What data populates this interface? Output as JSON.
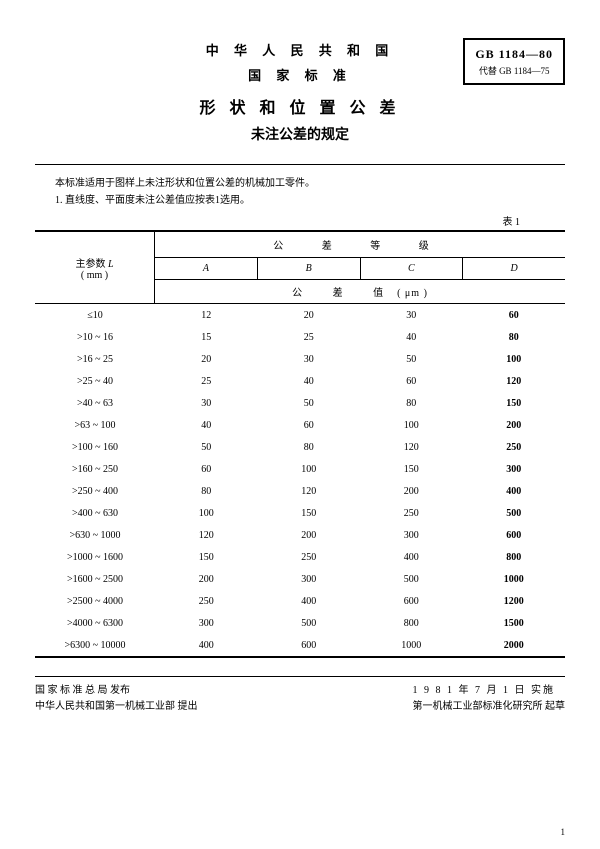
{
  "header": {
    "country": "中 华 人 民 共 和 国",
    "standard": "国 家 标 准",
    "main_title": "形 状 和 位 置 公 差",
    "sub_title": "未注公差的规定",
    "gb_main": "GB 1184—80",
    "gb_sub": "代替 GB 1184—75"
  },
  "intro": {
    "line1": "本标准适用于图样上未注形状和位置公差的机械加工零件。",
    "line2": "1. 直线度、平面度未注公差值应按表1选用。"
  },
  "table": {
    "label": "表 1",
    "param_label_1": "主参数",
    "param_label_L": "L",
    "param_label_2": "( mm )",
    "grade_label": "公 差 等 级",
    "columns": [
      "A",
      "B",
      "C",
      "D"
    ],
    "unit_label": "公 差 值",
    "unit_paren": "( μm )",
    "rows": [
      {
        "range": "≤10",
        "vals": [
          "12",
          "20",
          "30",
          "60"
        ]
      },
      {
        "range": ">10 ~ 16",
        "vals": [
          "15",
          "25",
          "40",
          "80"
        ]
      },
      {
        "range": ">16 ~ 25",
        "vals": [
          "20",
          "30",
          "50",
          "100"
        ]
      },
      {
        "range": ">25 ~ 40",
        "vals": [
          "25",
          "40",
          "60",
          "120"
        ]
      },
      {
        "range": ">40 ~ 63",
        "vals": [
          "30",
          "50",
          "80",
          "150"
        ]
      },
      {
        "range": ">63 ~ 100",
        "vals": [
          "40",
          "60",
          "100",
          "200"
        ]
      },
      {
        "range": ">100 ~ 160",
        "vals": [
          "50",
          "80",
          "120",
          "250"
        ]
      },
      {
        "range": ">160 ~ 250",
        "vals": [
          "60",
          "100",
          "150",
          "300"
        ]
      },
      {
        "range": ">250 ~ 400",
        "vals": [
          "80",
          "120",
          "200",
          "400"
        ]
      },
      {
        "range": ">400 ~ 630",
        "vals": [
          "100",
          "150",
          "250",
          "500"
        ]
      },
      {
        "range": ">630 ~ 1000",
        "vals": [
          "120",
          "200",
          "300",
          "600"
        ]
      },
      {
        "range": ">1000 ~ 1600",
        "vals": [
          "150",
          "250",
          "400",
          "800"
        ]
      },
      {
        "range": ">1600 ~ 2500",
        "vals": [
          "200",
          "300",
          "500",
          "1000"
        ]
      },
      {
        "range": ">2500 ~ 4000",
        "vals": [
          "250",
          "400",
          "600",
          "1200"
        ]
      },
      {
        "range": ">4000 ~ 6300",
        "vals": [
          "300",
          "500",
          "800",
          "1500"
        ]
      },
      {
        "range": ">6300 ~ 10000",
        "vals": [
          "400",
          "600",
          "1000",
          "2000"
        ]
      }
    ],
    "bold_col": 3
  },
  "footer": {
    "left_1": "国 家 标 准 总 局  发布",
    "left_2": "中华人民共和国第一机械工业部  提出",
    "right_1": "1 9 8 1 年 7 月 1 日  实施",
    "right_2": "第一机械工业部标准化研究所  起草"
  },
  "page_num": "1",
  "colors": {
    "text": "#000000",
    "bg": "#ffffff",
    "border": "#000000"
  }
}
